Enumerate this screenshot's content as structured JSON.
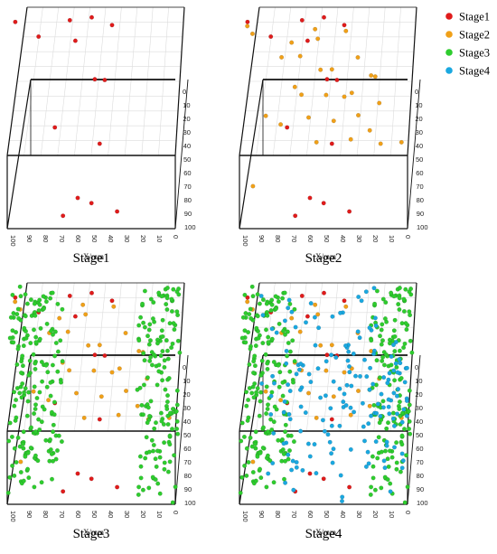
{
  "legend": {
    "entries": [
      {
        "name": "Stage1",
        "color": "#e01b1b"
      },
      {
        "name": "Stage2",
        "color": "#f0a018"
      },
      {
        "name": "Stage3",
        "color": "#2ecc2e"
      },
      {
        "name": "Stage4",
        "color": "#1aa8e0"
      }
    ],
    "placement": "top-right"
  },
  "chart_data": [
    {
      "type": "scatter3d",
      "title": "Stage1",
      "xlabel": "X/mm",
      "xticks": [
        "100",
        "90",
        "80",
        "70",
        "60",
        "50",
        "40",
        "30",
        "20",
        "10",
        "0"
      ],
      "zticks": [
        "0",
        "10",
        "20",
        "30",
        "40",
        "50",
        "60",
        "70",
        "80",
        "90",
        "100"
      ],
      "xlim": [
        100,
        0
      ],
      "zlim": [
        0,
        100
      ],
      "series": [
        {
          "name": "Stage1",
          "points": [
            [
              45,
              60
            ],
            [
              62,
              100
            ],
            [
              52,
              96
            ],
            [
              82,
              10
            ],
            [
              54,
              3
            ],
            [
              40,
              6
            ],
            [
              68,
              98
            ],
            [
              68,
              5
            ],
            [
              51,
              35
            ],
            [
              36,
              98
            ],
            [
              42,
              30
            ],
            [
              76,
              62
            ],
            [
              98,
              4
            ],
            [
              60,
              12
            ]
          ]
        }
      ]
    },
    {
      "type": "scatter3d",
      "title": "Stage2",
      "xlabel": "X/mm",
      "xticks": [
        "100",
        "90",
        "80",
        "70",
        "60",
        "50",
        "40",
        "30",
        "20",
        "10",
        "0"
      ],
      "zticks": [
        "0",
        "10",
        "20",
        "30",
        "40",
        "50",
        "60",
        "70",
        "80",
        "90",
        "100"
      ],
      "xlim": [
        100,
        0
      ],
      "zlim": [
        0,
        100
      ],
      "series": [
        {
          "name": "Stage1",
          "points": [
            [
              45,
              60
            ],
            [
              62,
              100
            ],
            [
              52,
              96
            ],
            [
              82,
              10
            ],
            [
              54,
              3
            ],
            [
              40,
              6
            ],
            [
              68,
              98
            ],
            [
              68,
              5
            ],
            [
              51,
              35
            ],
            [
              36,
              98
            ],
            [
              42,
              30
            ],
            [
              76,
              62
            ],
            [
              98,
              4
            ],
            [
              60,
              12
            ]
          ]
        },
        {
          "name": "Stage2",
          "points": [
            [
              92,
              80
            ],
            [
              6,
              70
            ],
            [
              95,
              10
            ],
            [
              96,
              5
            ],
            [
              80,
              25
            ],
            [
              72,
              15
            ],
            [
              65,
              20
            ],
            [
              60,
              10
            ],
            [
              55,
              30
            ],
            [
              50,
              40
            ],
            [
              45,
              25
            ],
            [
              40,
              10
            ],
            [
              35,
              40
            ],
            [
              30,
              20
            ],
            [
              25,
              35
            ],
            [
              70,
              38
            ],
            [
              60,
              50
            ],
            [
              42,
              48
            ],
            [
              32,
              54
            ],
            [
              18,
              44
            ],
            [
              16,
              60
            ],
            [
              58,
              70
            ],
            [
              78,
              56
            ],
            [
              85,
              48
            ],
            [
              48,
              60
            ],
            [
              66,
              42
            ],
            [
              20,
              30
            ],
            [
              38,
              72
            ],
            [
              25,
              62
            ],
            [
              55,
              12
            ]
          ]
        }
      ]
    },
    {
      "type": "scatter3d",
      "title": "Stage3",
      "xlabel": "X/mm",
      "xticks": [
        "100",
        "90",
        "80",
        "70",
        "60",
        "50",
        "40",
        "30",
        "20",
        "10",
        "0"
      ],
      "zticks": [
        "0",
        "10",
        "20",
        "30",
        "40",
        "50",
        "60",
        "70",
        "80",
        "90",
        "100"
      ],
      "xlim": [
        100,
        0
      ],
      "zlim": [
        0,
        100
      ],
      "series": [
        {
          "name": "Stage1",
          "points": [
            [
              45,
              60
            ],
            [
              62,
              100
            ],
            [
              52,
              96
            ],
            [
              82,
              10
            ],
            [
              54,
              3
            ],
            [
              40,
              6
            ],
            [
              68,
              98
            ],
            [
              68,
              5
            ],
            [
              51,
              35
            ],
            [
              36,
              98
            ],
            [
              42,
              30
            ],
            [
              76,
              62
            ],
            [
              98,
              4
            ],
            [
              60,
              12
            ]
          ]
        },
        {
          "name": "Stage2",
          "points": [
            [
              92,
              80
            ],
            [
              6,
              70
            ],
            [
              95,
              10
            ],
            [
              96,
              5
            ],
            [
              80,
              25
            ],
            [
              72,
              15
            ],
            [
              65,
              20
            ],
            [
              60,
              10
            ],
            [
              55,
              30
            ],
            [
              50,
              40
            ],
            [
              45,
              25
            ],
            [
              40,
              10
            ],
            [
              35,
              40
            ],
            [
              30,
              20
            ],
            [
              25,
              35
            ],
            [
              70,
              38
            ],
            [
              60,
              50
            ],
            [
              42,
              48
            ],
            [
              32,
              54
            ],
            [
              18,
              44
            ],
            [
              16,
              60
            ],
            [
              58,
              70
            ],
            [
              78,
              56
            ],
            [
              85,
              48
            ],
            [
              48,
              60
            ],
            [
              66,
              42
            ],
            [
              20,
              30
            ],
            [
              38,
              72
            ],
            [
              25,
              62
            ],
            [
              55,
              12
            ]
          ]
        },
        {
          "name": "Stage3",
          "count": 340,
          "clusters": [
            {
              "x": [
                72,
                100
              ],
              "z": [
                0,
                100
              ],
              "weight": 0.55
            },
            {
              "x": [
                0,
                24
              ],
              "z": [
                0,
                100
              ],
              "weight": 0.45
            }
          ],
          "seed": 7
        }
      ]
    },
    {
      "type": "scatter3d",
      "title": "Stage4",
      "xlabel": "X/mm",
      "xticks": [
        "100",
        "90",
        "80",
        "70",
        "60",
        "50",
        "40",
        "30",
        "20",
        "10",
        "0"
      ],
      "zticks": [
        "0",
        "10",
        "20",
        "30",
        "40",
        "50",
        "60",
        "70",
        "80",
        "90",
        "100"
      ],
      "xlim": [
        100,
        0
      ],
      "zlim": [
        0,
        100
      ],
      "series": [
        {
          "name": "Stage1",
          "points": [
            [
              45,
              60
            ],
            [
              62,
              100
            ],
            [
              52,
              96
            ],
            [
              82,
              10
            ],
            [
              54,
              3
            ],
            [
              40,
              6
            ],
            [
              68,
              98
            ],
            [
              68,
              5
            ],
            [
              51,
              35
            ],
            [
              36,
              98
            ],
            [
              42,
              30
            ],
            [
              76,
              62
            ],
            [
              98,
              4
            ],
            [
              60,
              12
            ]
          ]
        },
        {
          "name": "Stage2",
          "points": [
            [
              92,
              80
            ],
            [
              6,
              70
            ],
            [
              95,
              10
            ],
            [
              96,
              5
            ],
            [
              80,
              25
            ],
            [
              72,
              15
            ],
            [
              65,
              20
            ],
            [
              60,
              10
            ],
            [
              55,
              30
            ],
            [
              50,
              40
            ],
            [
              45,
              25
            ],
            [
              40,
              10
            ],
            [
              35,
              40
            ],
            [
              30,
              20
            ],
            [
              25,
              35
            ],
            [
              70,
              38
            ],
            [
              60,
              50
            ],
            [
              42,
              48
            ],
            [
              32,
              54
            ],
            [
              18,
              44
            ],
            [
              16,
              60
            ],
            [
              58,
              70
            ],
            [
              78,
              56
            ],
            [
              85,
              48
            ],
            [
              48,
              60
            ],
            [
              66,
              42
            ],
            [
              20,
              30
            ],
            [
              38,
              72
            ],
            [
              25,
              62
            ],
            [
              55,
              12
            ]
          ]
        },
        {
          "name": "Stage3",
          "count": 340,
          "clusters": [
            {
              "x": [
                72,
                100
              ],
              "z": [
                0,
                100
              ],
              "weight": 0.55
            },
            {
              "x": [
                0,
                24
              ],
              "z": [
                0,
                100
              ],
              "weight": 0.45
            }
          ],
          "seed": 7
        },
        {
          "name": "Stage4",
          "count": 170,
          "clusters": [
            {
              "x": [
                20,
                90
              ],
              "z": [
                0,
                100
              ],
              "weight": 0.75
            },
            {
              "x": [
                2,
                18
              ],
              "z": [
                25,
                100
              ],
              "weight": 0.25
            }
          ],
          "seed": 11
        }
      ]
    }
  ]
}
